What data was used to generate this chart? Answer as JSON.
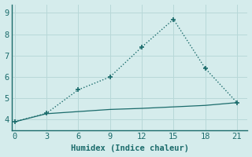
{
  "x": [
    0,
    3,
    6,
    9,
    12,
    15,
    18,
    21
  ],
  "line1_y": [
    3.9,
    4.3,
    5.4,
    6.0,
    7.4,
    8.7,
    6.4,
    4.8
  ],
  "line2_y": [
    3.9,
    4.28,
    4.38,
    4.48,
    4.53,
    4.6,
    4.67,
    4.8
  ],
  "line_color": "#1a6b6b",
  "bg_color": "#d5ecec",
  "grid_color": "#b8d8d8",
  "spine_color": "#1a6b6b",
  "xlabel": "Humidex (Indice chaleur)",
  "xlim": [
    -0.3,
    22
  ],
  "ylim": [
    3.5,
    9.4
  ],
  "xticks": [
    0,
    3,
    6,
    9,
    12,
    15,
    18,
    21
  ],
  "yticks": [
    4,
    5,
    6,
    7,
    8,
    9
  ],
  "xlabel_fontsize": 7.5,
  "tick_fontsize": 7.5
}
